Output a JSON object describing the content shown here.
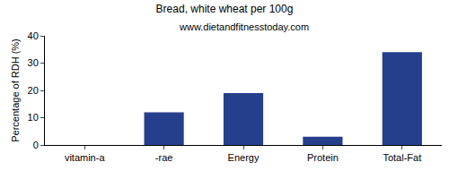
{
  "chart_data": {
    "type": "bar",
    "title": "Bread, white wheat per 100g",
    "subtitle": "www.dietandfitnesstoday.com",
    "y_label": "Percentage of RDH (%)",
    "categories": [
      "vitamin-a",
      "-rae",
      "Energy",
      "Protein",
      "Total-Fat"
    ],
    "values": [
      0,
      12,
      19,
      3,
      34
    ],
    "color": "#253f8c",
    "ylim": [
      0,
      40
    ],
    "yticks": [
      0,
      10,
      20,
      30,
      40
    ],
    "grid": false
  }
}
